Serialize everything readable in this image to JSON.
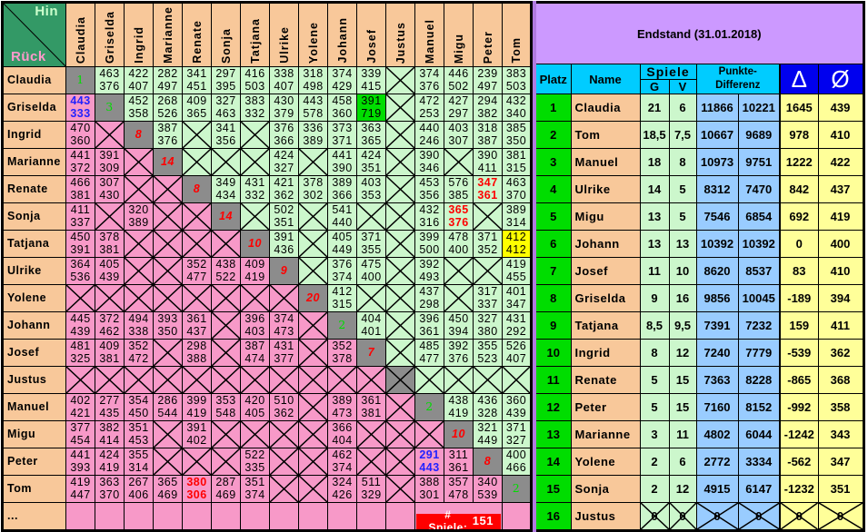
{
  "cross": {
    "hin_label": "Hin",
    "rueck_label": "Rück",
    "players": [
      "Claudia",
      "Griselda",
      "Ingrid",
      "Marianne",
      "Renate",
      "Sonja",
      "Tatjana",
      "Ulrike",
      "Yolene",
      "Johann",
      "Josef",
      "Justus",
      "Manuel",
      "Migu",
      "Peter",
      "Tom"
    ],
    "rows": [
      {
        "cells": [
          {
            "diag": "1",
            "color": "green"
          },
          [
            "463",
            "376"
          ],
          [
            "422",
            "407"
          ],
          [
            "282",
            "497"
          ],
          [
            "341",
            "451"
          ],
          [
            "297",
            "395"
          ],
          [
            "416",
            "503"
          ],
          [
            "338",
            "407"
          ],
          [
            "318",
            "498"
          ],
          [
            "374",
            "429"
          ],
          [
            "339",
            "415"
          ],
          null,
          [
            "374",
            "376"
          ],
          [
            "446",
            "502"
          ],
          [
            "239",
            "497"
          ],
          [
            "383",
            "503"
          ]
        ]
      },
      {
        "cells": [
          [
            "443",
            "333",
            "blue"
          ],
          {
            "diag": "3",
            "color": "green"
          },
          [
            "452",
            "358"
          ],
          [
            "268",
            "526"
          ],
          [
            "409",
            "365"
          ],
          [
            "327",
            "463"
          ],
          [
            "383",
            "332"
          ],
          [
            "430",
            "379"
          ],
          [
            "443",
            "578"
          ],
          [
            "458",
            "360"
          ],
          [
            "391",
            "719",
            "green-bg"
          ],
          null,
          [
            "472",
            "253"
          ],
          [
            "427",
            "297"
          ],
          [
            "294",
            "382"
          ],
          [
            "432",
            "340"
          ]
        ]
      },
      {
        "cells": [
          [
            "470",
            "360"
          ],
          null,
          {
            "diag": "8",
            "color": "red"
          },
          [
            "387",
            "376"
          ],
          null,
          [
            "341",
            "356"
          ],
          null,
          [
            "376",
            "366"
          ],
          [
            "336",
            "389"
          ],
          [
            "373",
            "371"
          ],
          [
            "363",
            "365"
          ],
          null,
          [
            "440",
            "246"
          ],
          [
            "403",
            "307"
          ],
          [
            "318",
            "387"
          ],
          [
            "385",
            "350"
          ]
        ]
      },
      {
        "cells": [
          [
            "441",
            "372"
          ],
          [
            "391",
            "309"
          ],
          null,
          {
            "diag": "14",
            "color": "red"
          },
          null,
          null,
          null,
          [
            "424",
            "327"
          ],
          null,
          [
            "441",
            "390"
          ],
          [
            "424",
            "351"
          ],
          null,
          [
            "390",
            "346"
          ],
          null,
          [
            "390",
            "411"
          ],
          [
            "381",
            "315"
          ]
        ]
      },
      {
        "cells": [
          [
            "466",
            "381"
          ],
          [
            "307",
            "430"
          ],
          null,
          null,
          {
            "diag": "8",
            "color": "red"
          },
          [
            "349",
            "434"
          ],
          [
            "431",
            "332"
          ],
          [
            "421",
            "362"
          ],
          [
            "378",
            "302"
          ],
          [
            "389",
            "366"
          ],
          [
            "403",
            "353"
          ],
          null,
          [
            "453",
            "356"
          ],
          [
            "576",
            "385"
          ],
          [
            "347",
            "361",
            "red"
          ],
          [
            "463",
            "370"
          ]
        ]
      },
      {
        "cells": [
          [
            "411",
            "337"
          ],
          null,
          [
            "320",
            "389"
          ],
          null,
          null,
          {
            "diag": "14",
            "color": "red"
          },
          null,
          [
            "502",
            "351"
          ],
          null,
          [
            "541",
            "440"
          ],
          null,
          null,
          [
            "432",
            "316"
          ],
          [
            "365",
            "376",
            "red"
          ],
          null,
          [
            "389",
            "314"
          ]
        ]
      },
      {
        "cells": [
          [
            "450",
            "391"
          ],
          [
            "378",
            "381"
          ],
          null,
          null,
          null,
          null,
          {
            "diag": "10",
            "color": "red"
          },
          [
            "391",
            "436"
          ],
          null,
          [
            "405",
            "449"
          ],
          [
            "371",
            "355"
          ],
          null,
          [
            "399",
            "500"
          ],
          [
            "478",
            "400"
          ],
          [
            "371",
            "352"
          ],
          [
            "412",
            "412",
            "yellow-bg"
          ]
        ]
      },
      {
        "cells": [
          [
            "364",
            "536"
          ],
          [
            "405",
            "439"
          ],
          null,
          null,
          [
            "352",
            "477"
          ],
          [
            "438",
            "522"
          ],
          [
            "409",
            "419"
          ],
          {
            "diag": "9",
            "color": "red"
          },
          null,
          [
            "376",
            "374"
          ],
          [
            "475",
            "400"
          ],
          null,
          [
            "392",
            "493"
          ],
          null,
          null,
          [
            "419",
            "455"
          ]
        ]
      },
      {
        "cells": [
          null,
          null,
          null,
          null,
          null,
          null,
          null,
          null,
          {
            "diag": "20",
            "color": "red"
          },
          [
            "412",
            "315"
          ],
          null,
          null,
          [
            "437",
            "298"
          ],
          null,
          [
            "317",
            "337"
          ],
          [
            "401",
            "347"
          ]
        ]
      },
      {
        "cells": [
          [
            "445",
            "439"
          ],
          [
            "372",
            "462"
          ],
          [
            "494",
            "338"
          ],
          [
            "393",
            "350"
          ],
          [
            "361",
            "437"
          ],
          null,
          [
            "396",
            "403"
          ],
          [
            "374",
            "473"
          ],
          null,
          {
            "diag": "2",
            "color": "green"
          },
          [
            "404",
            "401"
          ],
          null,
          [
            "396",
            "361"
          ],
          [
            "450",
            "394"
          ],
          [
            "327",
            "380"
          ],
          [
            "431",
            "292"
          ]
        ]
      },
      {
        "cells": [
          [
            "481",
            "325"
          ],
          [
            "409",
            "381"
          ],
          [
            "352",
            "472"
          ],
          null,
          [
            "298",
            "388"
          ],
          null,
          [
            "387",
            "474"
          ],
          [
            "431",
            "377"
          ],
          null,
          [
            "352",
            "378"
          ],
          {
            "diag": "7",
            "color": "red"
          },
          null,
          [
            "485",
            "477"
          ],
          [
            "392",
            "376"
          ],
          [
            "355",
            "523"
          ],
          [
            "526",
            "407"
          ]
        ]
      },
      {
        "cells": [
          null,
          null,
          null,
          null,
          null,
          null,
          null,
          null,
          null,
          null,
          null,
          {
            "diag": "",
            "color": "cross"
          },
          null,
          null,
          null,
          null
        ]
      },
      {
        "cells": [
          [
            "402",
            "421"
          ],
          [
            "277",
            "435"
          ],
          [
            "354",
            "450"
          ],
          [
            "286",
            "544"
          ],
          [
            "399",
            "419"
          ],
          [
            "353",
            "548"
          ],
          [
            "420",
            "405"
          ],
          [
            "510",
            "362"
          ],
          null,
          [
            "389",
            "473"
          ],
          [
            "361",
            "381"
          ],
          null,
          {
            "diag": "2",
            "color": "green"
          },
          [
            "438",
            "419"
          ],
          [
            "436",
            "328"
          ],
          [
            "360",
            "439"
          ]
        ]
      },
      {
        "cells": [
          [
            "377",
            "454"
          ],
          [
            "382",
            "414"
          ],
          [
            "351",
            "453"
          ],
          null,
          [
            "391",
            "402"
          ],
          null,
          null,
          null,
          null,
          [
            "366",
            "404"
          ],
          null,
          null,
          null,
          {
            "diag": "10",
            "color": "red"
          },
          [
            "321",
            "449"
          ],
          [
            "371",
            "327"
          ]
        ]
      },
      {
        "cells": [
          [
            "441",
            "393"
          ],
          [
            "424",
            "419"
          ],
          [
            "355",
            "314"
          ],
          null,
          null,
          null,
          [
            "522",
            "335"
          ],
          null,
          null,
          [
            "462",
            "374"
          ],
          null,
          null,
          [
            "291",
            "443",
            "blue"
          ],
          [
            "311",
            "361"
          ],
          {
            "diag": "8",
            "color": "red"
          },
          [
            "400",
            "466"
          ]
        ]
      },
      {
        "cells": [
          [
            "419",
            "447"
          ],
          [
            "363",
            "370"
          ],
          [
            "267",
            "406"
          ],
          [
            "365",
            "469"
          ],
          [
            "380",
            "306",
            "red"
          ],
          [
            "287",
            "469"
          ],
          [
            "351",
            "374"
          ],
          null,
          null,
          [
            "324",
            "426"
          ],
          [
            "511",
            "329"
          ],
          null,
          [
            "388",
            "301"
          ],
          [
            "357",
            "478"
          ],
          [
            "340",
            "539"
          ],
          {
            "diag": "2",
            "color": "green"
          }
        ]
      }
    ],
    "more_label": "...",
    "games_label": "# Spiele:",
    "games_count": "151"
  },
  "standings": {
    "title": "Endstand (31.01.2018)",
    "headers": {
      "platz": "Platz",
      "name": "Name",
      "spiele": "Spiele",
      "g": "G",
      "v": "V",
      "punkte": "Punkte-\nDifferenz",
      "delta": "Δ",
      "avg": "Ø"
    },
    "rows": [
      {
        "platz": "1",
        "name": "Claudia",
        "g": "21",
        "v": "6",
        "pf": "11866",
        "pa": "10221",
        "delta": "1645",
        "avg": "439"
      },
      {
        "platz": "2",
        "name": "Tom",
        "g": "18,5",
        "v": "7,5",
        "pf": "10667",
        "pa": "9689",
        "delta": "978",
        "avg": "410"
      },
      {
        "platz": "3",
        "name": "Manuel",
        "g": "18",
        "v": "8",
        "pf": "10973",
        "pa": "9751",
        "delta": "1222",
        "avg": "422"
      },
      {
        "platz": "4",
        "name": "Ulrike",
        "g": "14",
        "v": "5",
        "pf": "8312",
        "pa": "7470",
        "delta": "842",
        "avg": "437"
      },
      {
        "platz": "5",
        "name": "Migu",
        "g": "13",
        "v": "5",
        "pf": "7546",
        "pa": "6854",
        "delta": "692",
        "avg": "419"
      },
      {
        "platz": "6",
        "name": "Johann",
        "g": "13",
        "v": "13",
        "pf": "10392",
        "pa": "10392",
        "delta": "0",
        "avg": "400"
      },
      {
        "platz": "7",
        "name": "Josef",
        "g": "11",
        "v": "10",
        "pf": "8620",
        "pa": "8537",
        "delta": "83",
        "avg": "410"
      },
      {
        "platz": "8",
        "name": "Griselda",
        "g": "9",
        "v": "16",
        "pf": "9856",
        "pa": "10045",
        "delta": "-189",
        "avg": "394"
      },
      {
        "platz": "9",
        "name": "Tatjana",
        "g": "8,5",
        "v": "9,5",
        "pf": "7391",
        "pa": "7232",
        "delta": "159",
        "avg": "411"
      },
      {
        "platz": "10",
        "name": "Ingrid",
        "g": "8",
        "v": "12",
        "pf": "7240",
        "pa": "7779",
        "delta": "-539",
        "avg": "362"
      },
      {
        "platz": "11",
        "name": "Renate",
        "g": "5",
        "v": "15",
        "pf": "7363",
        "pa": "8228",
        "delta": "-865",
        "avg": "368"
      },
      {
        "platz": "12",
        "name": "Peter",
        "g": "5",
        "v": "15",
        "pf": "7160",
        "pa": "8152",
        "delta": "-992",
        "avg": "358"
      },
      {
        "platz": "13",
        "name": "Marianne",
        "g": "3",
        "v": "11",
        "pf": "4802",
        "pa": "6044",
        "delta": "-1242",
        "avg": "343"
      },
      {
        "platz": "14",
        "name": "Yolene",
        "g": "2",
        "v": "6",
        "pf": "2772",
        "pa": "3334",
        "delta": "-562",
        "avg": "347"
      },
      {
        "platz": "15",
        "name": "Sonja",
        "g": "2",
        "v": "12",
        "pf": "4915",
        "pa": "6147",
        "delta": "-1232",
        "avg": "351"
      },
      {
        "platz": "16",
        "name": "Justus",
        "g": "0",
        "v": "0",
        "pf": "0",
        "pa": "0",
        "delta": "0",
        "avg": "0",
        "crossed": true
      }
    ]
  }
}
